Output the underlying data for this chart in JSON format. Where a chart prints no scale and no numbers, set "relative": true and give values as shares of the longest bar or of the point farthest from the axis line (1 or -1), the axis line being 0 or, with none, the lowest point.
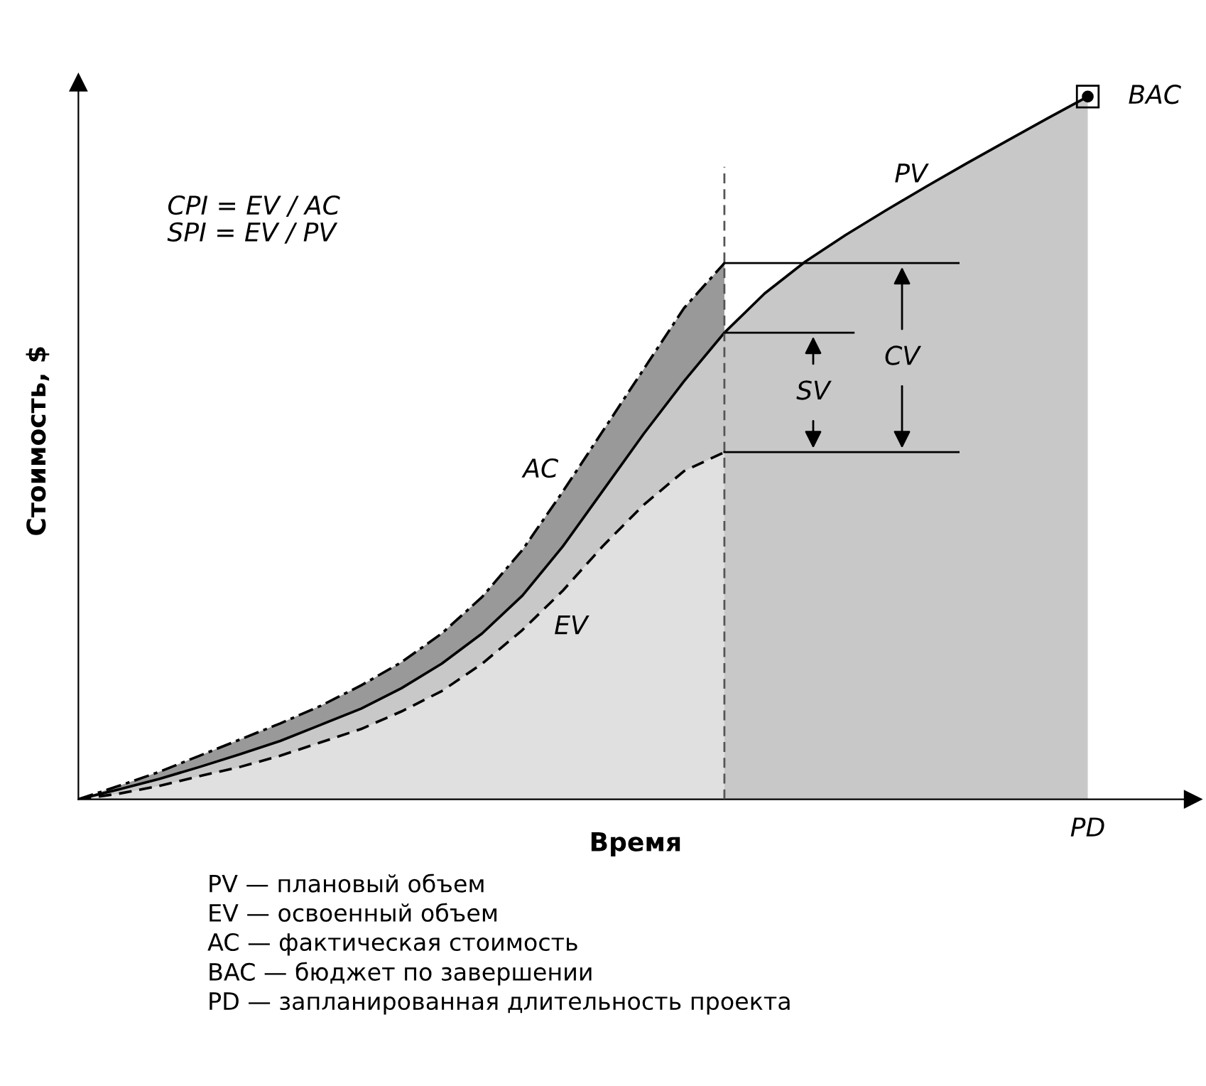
{
  "chart_data": {
    "type": "area",
    "relative": true,
    "xlabel": "Время",
    "ylabel": "Стоимость, $",
    "categories": [
      null,
      null,
      null,
      null,
      null,
      null,
      null,
      null,
      null,
      null,
      null,
      null,
      null,
      null,
      null,
      null,
      null,
      null,
      null,
      null,
      null,
      null,
      null,
      null,
      null,
      null
    ],
    "series": [
      {
        "name": "AC",
        "color": "#999999",
        "line_style": "dotted",
        "values": [
          0,
          0.019,
          0.039,
          0.062,
          0.085,
          0.108,
          0.133,
          0.162,
          0.195,
          0.236,
          0.288,
          0.355,
          0.438,
          0.525,
          0.612,
          0.699,
          0.763,
          null,
          null,
          null,
          null,
          null,
          null,
          null,
          null,
          null
        ]
      },
      {
        "name": "PV",
        "color": "#c8c8c8",
        "line_style": "solid",
        "values": [
          0,
          0.014,
          0.029,
          0.046,
          0.064,
          0.083,
          0.106,
          0.129,
          0.158,
          0.193,
          0.236,
          0.29,
          0.36,
          0.44,
          0.52,
          0.595,
          0.664,
          0.72,
          0.765,
          0.803,
          0.838,
          0.872,
          0.905,
          0.937,
          0.969,
          1
        ]
      },
      {
        "name": "EV",
        "color": "#e0e0e0",
        "line_style": "dashed",
        "values": [
          0,
          0.008,
          0.019,
          0.033,
          0.046,
          0.062,
          0.081,
          0.1,
          0.125,
          0.154,
          0.193,
          0.241,
          0.297,
          0.361,
          0.419,
          0.467,
          0.494,
          null,
          null,
          null,
          null,
          null,
          null,
          null,
          null,
          null
        ]
      }
    ],
    "ref_lines": [
      {
        "axis": "y",
        "value": 0.763
      },
      {
        "axis": "y",
        "value": 0.664
      },
      {
        "axis": "y",
        "value": 0.494
      }
    ],
    "annotations": [
      "CPI = EV / AC\nSPI = EV / PV",
      "BAC",
      "SV",
      "CV",
      "PD",
      "PV — плановый объем\nEV — освоенный объем\nAC — фактическая стоимость\nBAC — бюджет по завершении\nPD — запланированная длительность проекта"
    ],
    "legend": false
  }
}
